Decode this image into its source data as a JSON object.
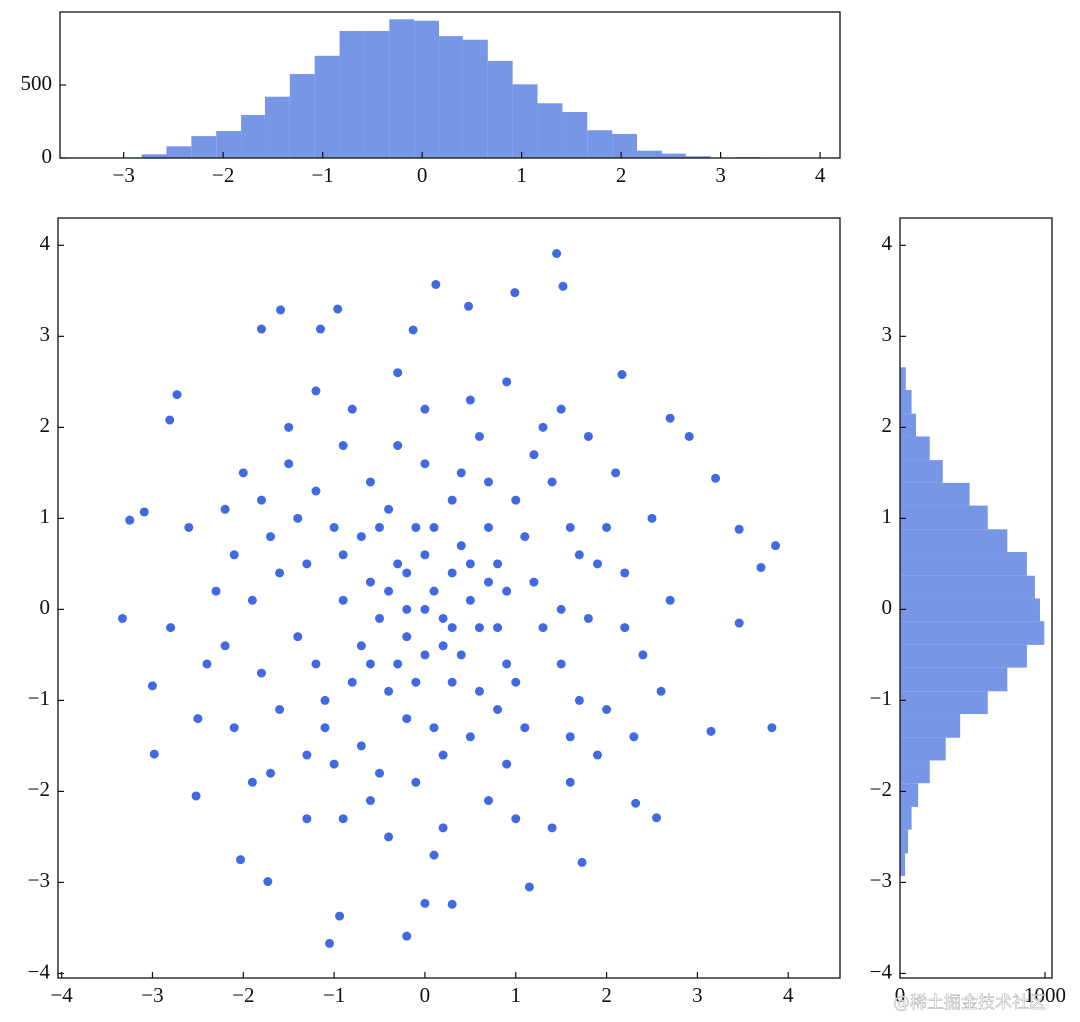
{
  "chart_data": [
    {
      "type": "scatter",
      "color": "#4169e1",
      "x": [
        1.45,
        1.52,
        0.12,
        0.48,
        0.99,
        -1.59,
        -0.96,
        -1.15,
        -1.8,
        -0.13,
        -3.33,
        -3.25,
        3.86,
        3.7,
        3.82,
        -1.05,
        -0.2,
        -0.94,
        0,
        0.3,
        1.15,
        -2.03,
        -1.73,
        -2.98,
        -2.73,
        2.17,
        2.7,
        2.91,
        3.2,
        3.46,
        3.46,
        3.15,
        2.55,
        2.32,
        1.73,
        -2.52,
        -2.81,
        -3.09,
        -3.0,
        0.1,
        -0.3,
        0.6,
        -0.7,
        0.3,
        -0.2,
        0.8,
        -0.5,
        0.4,
        -0.9,
        0.0,
        0.5,
        -0.4,
        0.9,
        -0.1,
        0.2,
        -0.6,
        0.7,
        -0.8,
        0.3,
        -0.2,
        0.0,
        0.6,
        -0.5,
        0.2,
        -0.3,
        0.9,
        -0.9,
        0.4,
        -0.1,
        0.5,
        -0.7,
        0.1,
        -0.4,
        0.8,
        0.0,
        -0.6,
        0.3,
        -0.2,
        0.7,
        1.2,
        -1.3,
        1.5,
        -1.1,
        0.4,
        -0.6,
        1.0,
        -1.4,
        0.2,
        -0.7,
        1.6,
        -1.7,
        1.1,
        -0.3,
        0.9,
        -1.6,
        1.8,
        -1.9,
        0.6,
        -1.2,
        1.4,
        -0.1,
        1.7,
        -1.5,
        0.3,
        -1.0,
        1.3,
        -1.2,
        0.1,
        -0.4,
        1.9,
        -1.8,
        0.8,
        -0.9,
        1.5,
        -1.4,
        1.0,
        -0.2,
        0.7,
        -1.6,
        1.2,
        -1.1,
        1.6,
        -0.5,
        0.5,
        -1.3,
        1.1,
        -1.0,
        0.0,
        1.7,
        2.2,
        -2.3,
        2.0,
        -2.1,
        0.5,
        -0.8,
        1.3,
        -1.5,
        0.2,
        -0.9,
        1.6,
        -1.7,
        2.5,
        -2.6,
        2.4,
        -2.4,
        0.9,
        -0.3,
        1.0,
        -0.4,
        2.1,
        -2.0,
        1.9,
        -1.9,
        2.7,
        -2.8,
        0.0,
        0.1,
        2.3,
        -2.2,
        1.5,
        -1.2,
        1.4,
        -1.3,
        2.6,
        -2.5,
        2.0,
        -2.1,
        0.7,
        -0.6,
        1.8,
        -1.8,
        2.2,
        -2.2
      ],
      "y": [
        3.91,
        3.55,
        3.57,
        3.33,
        3.48,
        3.29,
        3.3,
        3.08,
        3.08,
        3.07,
        -0.1,
        0.98,
        0.7,
        0.46,
        -1.3,
        -3.67,
        -3.59,
        -3.37,
        -3.23,
        -3.24,
        -3.05,
        -2.75,
        -2.99,
        -1.59,
        2.36,
        2.58,
        2.1,
        1.9,
        1.44,
        0.88,
        -0.15,
        -1.34,
        -2.29,
        -2.13,
        -2.78,
        -2.05,
        2.08,
        1.07,
        -0.84,
        0.2,
        0.5,
        -0.2,
        -0.4,
        -0.8,
        -0.3,
        0.5,
        0.9,
        0.7,
        0.1,
        -0.5,
        0.1,
        -0.9,
        -0.6,
        0.9,
        -0.1,
        0.3,
        0.9,
        -0.8,
        0.4,
        0.0,
        0.6,
        -0.9,
        -0.1,
        -0.4,
        -0.6,
        0.2,
        0.6,
        -0.5,
        -0.8,
        0.5,
        0.8,
        0.9,
        0.2,
        -0.2,
        0.0,
        -0.6,
        -0.2,
        0.4,
        0.3,
        0.3,
        0.5,
        -0.6,
        -1.0,
        1.5,
        1.4,
        1.2,
        -0.3,
        -1.6,
        -1.5,
        0.9,
        0.8,
        -1.3,
        1.8,
        -1.7,
        -1.1,
        -0.1,
        0.1,
        1.9,
        1.3,
        1.4,
        -1.9,
        -1.0,
        1.6,
        1.2,
        -1.7,
        -0.2,
        -0.6,
        -1.3,
        1.1,
        0.5,
        -0.7,
        -1.1,
        1.8,
        0.0,
        1.0,
        -0.8,
        -1.2,
        1.4,
        0.4,
        1.7,
        -1.3,
        -1.4,
        -1.8,
        -1.4,
        -1.6,
        0.8,
        0.9,
        1.6,
        0.6,
        0.4,
        0.2,
        -1.1,
        -1.3,
        2.3,
        2.2,
        2.0,
        2.0,
        -2.4,
        -2.3,
        -1.9,
        -1.8,
        1.0,
        0.9,
        -0.5,
        -0.6,
        2.5,
        2.6,
        -2.3,
        -2.5,
        1.5,
        1.5,
        -1.6,
        -1.9,
        0.1,
        -0.2,
        2.2,
        -2.7,
        -1.4,
        1.1,
        2.2,
        2.4,
        -2.4,
        -2.3,
        -0.9,
        -1.2,
        0.9,
        0.6,
        -2.1,
        -2.1,
        1.9,
        1.2,
        -0.2,
        -0.4
      ],
      "xlim": [
        -4.04,
        4.57
      ],
      "ylim": [
        -4.05,
        4.3
      ],
      "xticks": [
        {
          "value": -4,
          "label": "−4"
        },
        {
          "value": -3,
          "label": "−3"
        },
        {
          "value": -2,
          "label": "−2"
        },
        {
          "value": -1,
          "label": "−1"
        },
        0,
        1,
        2,
        3,
        4
      ],
      "yticks": [
        {
          "value": -4,
          "label": "−4"
        },
        {
          "value": -3,
          "label": "−3"
        },
        {
          "value": -2,
          "label": "−2"
        },
        {
          "value": -1,
          "label": "−1"
        },
        0,
        1,
        2,
        3,
        4
      ]
    },
    {
      "type": "histogram",
      "orientation": "vertical",
      "color": "#7797e6",
      "bins": [
        -2.82,
        -2.57,
        -2.32,
        -2.07,
        -1.82,
        -1.58,
        -1.33,
        -1.08,
        -0.83,
        -0.58,
        -0.33,
        -0.08,
        0.17,
        0.41,
        0.66,
        0.91,
        1.16,
        1.41,
        1.66,
        1.91,
        2.16,
        2.41,
        2.65,
        2.9,
        3.15,
        3.4
      ],
      "counts": [
        25,
        80,
        150,
        185,
        295,
        420,
        575,
        700,
        870,
        870,
        950,
        940,
        835,
        810,
        665,
        505,
        375,
        315,
        190,
        165,
        50,
        30,
        12,
        3,
        6
      ],
      "xlim": [
        -3.64,
        4.2
      ],
      "ylim": [
        0,
        1000
      ],
      "xticks": [
        {
          "value": -3,
          "label": "−3"
        },
        {
          "value": -2,
          "label": "−2"
        },
        {
          "value": -1,
          "label": "−1"
        },
        0,
        1,
        2,
        3,
        4
      ],
      "yticks": [
        0,
        500
      ]
    },
    {
      "type": "histogram",
      "orientation": "horizontal",
      "color": "#7797e6",
      "bins": [
        -2.93,
        -2.68,
        -2.42,
        -2.17,
        -1.91,
        -1.66,
        -1.41,
        -1.15,
        -0.9,
        -0.64,
        -0.39,
        -0.13,
        0.12,
        0.37,
        0.63,
        0.88,
        1.14,
        1.39,
        1.64,
        1.9,
        2.15,
        2.41,
        2.66
      ],
      "counts": [
        35,
        55,
        80,
        125,
        205,
        315,
        415,
        605,
        740,
        875,
        995,
        965,
        930,
        875,
        740,
        605,
        480,
        295,
        205,
        110,
        80,
        40
      ],
      "xlim": [
        0,
        1048
      ],
      "ylim": [
        -4.05,
        4.3
      ],
      "xticks": [
        0,
        1000
      ],
      "yticks": [
        {
          "value": -4,
          "label": "−4"
        },
        {
          "value": -3,
          "label": "−3"
        },
        {
          "value": -2,
          "label": "−2"
        },
        {
          "value": -1,
          "label": "−1"
        },
        0,
        1,
        2,
        3,
        4
      ]
    }
  ],
  "watermark": "@稀土掘金技术社区"
}
